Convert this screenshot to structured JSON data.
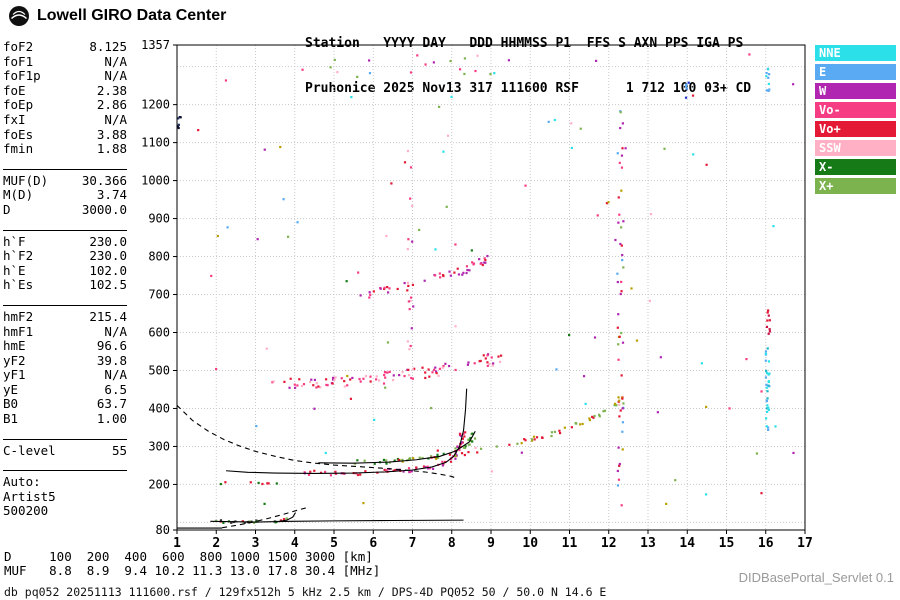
{
  "header": {
    "brand": "Lowell GIRO Data Center",
    "station_header_line": "Station   YYYY DAY   DDD HHMMSS P1  FFS S AXN PPS IGA PS",
    "station_value_line": "Pruhonice 2025 Nov13 317 111600 RSF      1 712 100 03+ CD"
  },
  "parameters": {
    "groups": [
      {
        "rows": [
          [
            "foF2",
            "8.125"
          ],
          [
            "foF1",
            "N/A"
          ],
          [
            "foF1p",
            "N/A"
          ],
          [
            "foE",
            "2.38"
          ],
          [
            "foEp",
            "2.86"
          ],
          [
            "fxI",
            "N/A"
          ],
          [
            "foEs",
            "3.88"
          ],
          [
            "fmin",
            "1.88"
          ]
        ]
      },
      {
        "rows": [
          [
            "MUF(D)",
            "30.366"
          ],
          [
            "M(D)",
            "3.74"
          ],
          [
            "D",
            "3000.0"
          ]
        ]
      },
      {
        "rows": [
          [
            "h`F",
            "230.0"
          ],
          [
            "h`F2",
            "230.0"
          ],
          [
            "h`E",
            "102.0"
          ],
          [
            "h`Es",
            "102.5"
          ]
        ]
      },
      {
        "rows": [
          [
            "hmF2",
            "215.4"
          ],
          [
            "hmF1",
            "N/A"
          ],
          [
            "hmE",
            "96.6"
          ],
          [
            "yF2",
            "39.8"
          ],
          [
            "yF1",
            "N/A"
          ],
          [
            "yE",
            "6.5"
          ],
          [
            "B0",
            "63.7"
          ],
          [
            "B1",
            "1.00"
          ]
        ]
      },
      {
        "rows": [
          [
            "C-level",
            "55"
          ]
        ]
      },
      {
        "rows": [
          [
            "Auto:",
            ""
          ],
          [
            "Artist5",
            ""
          ],
          [
            "500200",
            ""
          ]
        ]
      }
    ]
  },
  "legend": {
    "items": [
      {
        "label": "NNE",
        "color": "#2be0e8"
      },
      {
        "label": "E",
        "color": "#59aaf2"
      },
      {
        "label": "W",
        "color": "#b026b0"
      },
      {
        "label": "Vo-",
        "color": "#f63d84"
      },
      {
        "label": "Vo+",
        "color": "#e31936"
      },
      {
        "label": "SSW",
        "color": "#ffb0c4"
      },
      {
        "label": "X-",
        "color": "#167a16"
      },
      {
        "label": "X+",
        "color": "#7cb34f"
      }
    ]
  },
  "footer": {
    "d_row": "D     100  200  400  600  800 1000 1500 3000 [km]",
    "muf_row": "MUF   8.8  8.9  9.4 10.2 11.3 13.0 17.8 30.4 [MHz]",
    "status_line": "db pq052 20251113 111600.rsf / 129fx512h 5 kHz 2.5 km / DPS-4D PQ052 50 / 50.0 N 14.6 E",
    "servlet_label": "DIDBasePortal_Servlet 0.1"
  },
  "chart_data": {
    "type": "scatter",
    "title": "Pruhonice Digisonde ionogram 2025 Nov13 (day 317) 11:16:00",
    "xlabel": "[MHz]",
    "ylabel": "[km]",
    "xlim": [
      1,
      17
    ],
    "ylim": [
      80,
      1357
    ],
    "grid": true,
    "legend_position": "right",
    "x_ticks": [
      1,
      2,
      3,
      4,
      5,
      6,
      7,
      8,
      9,
      10,
      11,
      12,
      13,
      14,
      15,
      16,
      17
    ],
    "y_tick_labels": [
      1357,
      1200,
      1100,
      1000,
      900,
      800,
      700,
      600,
      500,
      400,
      300,
      200,
      80
    ],
    "y_gridlines": [
      100,
      200,
      300,
      400,
      500,
      600,
      700,
      800,
      900,
      1000,
      1100,
      1200,
      1300
    ],
    "traces": [
      {
        "name": "baseline",
        "style": "solid",
        "points": [
          [
            1.0,
            85
          ],
          [
            2.15,
            85
          ]
        ]
      },
      {
        "name": "Es-trace",
        "style": "solid",
        "points": [
          [
            1.85,
            103
          ],
          [
            3.0,
            101
          ],
          [
            3.9,
            103
          ],
          [
            5.0,
            104
          ],
          [
            6.5,
            105
          ],
          [
            8.3,
            106
          ]
        ]
      },
      {
        "name": "E-cusp",
        "style": "solid",
        "points": [
          [
            3.55,
            102
          ],
          [
            3.8,
            106
          ],
          [
            3.95,
            114
          ],
          [
            4.02,
            126
          ]
        ]
      },
      {
        "name": "F-O-trace",
        "style": "solid",
        "points": [
          [
            2.25,
            236
          ],
          [
            2.8,
            232
          ],
          [
            3.5,
            230
          ],
          [
            4.5,
            229
          ],
          [
            5.5,
            230
          ],
          [
            6.3,
            233
          ],
          [
            7.0,
            238
          ],
          [
            7.5,
            246
          ],
          [
            7.85,
            258
          ],
          [
            8.05,
            274
          ],
          [
            8.2,
            300
          ],
          [
            8.3,
            342
          ],
          [
            8.35,
            396
          ],
          [
            8.38,
            452
          ]
        ]
      },
      {
        "name": "F-X-trace",
        "style": "solid",
        "points": [
          [
            4.6,
            257
          ],
          [
            5.5,
            256
          ],
          [
            6.4,
            259
          ],
          [
            7.1,
            265
          ],
          [
            7.7,
            274
          ],
          [
            8.1,
            288
          ],
          [
            8.45,
            312
          ],
          [
            8.6,
            340
          ]
        ]
      },
      {
        "name": "profile-F",
        "style": "dashed",
        "points": [
          [
            1.0,
            408
          ],
          [
            1.4,
            368
          ],
          [
            1.8,
            340
          ],
          [
            2.2,
            318
          ],
          [
            2.6,
            301
          ],
          [
            3.0,
            287
          ],
          [
            3.5,
            274
          ],
          [
            4.0,
            263
          ],
          [
            4.5,
            256
          ],
          [
            5.0,
            251
          ],
          [
            5.6,
            247
          ],
          [
            6.2,
            243
          ],
          [
            6.8,
            238
          ],
          [
            7.3,
            233
          ],
          [
            7.7,
            227
          ],
          [
            8.0,
            221
          ],
          [
            8.12,
            216
          ]
        ]
      },
      {
        "name": "profile-E",
        "style": "dashed",
        "points": [
          [
            2.15,
            86
          ],
          [
            2.5,
            92
          ],
          [
            2.9,
            100
          ],
          [
            3.3,
            110
          ],
          [
            3.7,
            121
          ],
          [
            4.1,
            133
          ],
          [
            4.35,
            140
          ]
        ]
      }
    ],
    "scatter_clusters": [
      {
        "name": "E-region-echoes",
        "mode": "path",
        "path": [
          [
            1.9,
            103
          ],
          [
            2.6,
            101
          ],
          [
            3.3,
            102
          ],
          [
            3.9,
            107
          ]
        ],
        "n": 26,
        "jitter_f": 0.1,
        "jitter_h": 4,
        "colors": [
          "#167a16",
          "#e31936",
          "#333333",
          "#7cb34f"
        ]
      },
      {
        "name": "E-second-hop",
        "mode": "path",
        "path": [
          [
            2.0,
            203
          ],
          [
            3.0,
            202
          ],
          [
            3.6,
            206
          ]
        ],
        "n": 8,
        "jitter_f": 0.12,
        "jitter_h": 4,
        "colors": [
          "#167a16",
          "#e31936"
        ]
      },
      {
        "name": "F-O-echoes",
        "mode": "path",
        "path": [
          [
            4.3,
            231
          ],
          [
            5.5,
            231
          ],
          [
            6.5,
            234
          ],
          [
            7.3,
            241
          ],
          [
            7.9,
            256
          ],
          [
            8.15,
            288
          ],
          [
            8.3,
            335
          ]
        ],
        "n": 70,
        "jitter_f": 0.08,
        "jitter_h": 7,
        "colors": [
          "#e31936",
          "#f63d84",
          "#b026b0"
        ]
      },
      {
        "name": "F-X-echoes",
        "mode": "path",
        "path": [
          [
            4.8,
            257
          ],
          [
            6.0,
            258
          ],
          [
            7.0,
            264
          ],
          [
            7.8,
            276
          ],
          [
            8.4,
            300
          ],
          [
            8.6,
            332
          ]
        ],
        "n": 34,
        "jitter_f": 0.08,
        "jitter_h": 6,
        "colors": [
          "#167a16",
          "#7cb34f"
        ]
      },
      {
        "name": "F-second-hop",
        "mode": "path",
        "path": [
          [
            3.4,
            462
          ],
          [
            4.5,
            465
          ],
          [
            5.5,
            472
          ],
          [
            6.5,
            483
          ],
          [
            7.5,
            497
          ],
          [
            8.5,
            516
          ],
          [
            9.3,
            536
          ]
        ],
        "n": 95,
        "jitter_f": 0.1,
        "jitter_h": 15,
        "colors": [
          "#f63d84",
          "#b026b0",
          "#e31936",
          "#ffb0c4"
        ]
      },
      {
        "name": "F-third-hop",
        "mode": "path",
        "path": [
          [
            5.6,
            700
          ],
          [
            6.5,
            716
          ],
          [
            7.5,
            738
          ],
          [
            8.3,
            763
          ],
          [
            8.9,
            792
          ]
        ],
        "n": 46,
        "jitter_f": 0.09,
        "jitter_h": 13,
        "colors": [
          "#f63d84",
          "#b026b0",
          "#e31936"
        ]
      },
      {
        "name": "oblique-arc",
        "mode": "path",
        "path": [
          [
            6.3,
            258
          ],
          [
            7.5,
            270
          ],
          [
            8.5,
            285
          ],
          [
            9.5,
            306
          ],
          [
            10.5,
            331
          ],
          [
            11.3,
            361
          ],
          [
            11.9,
            393
          ],
          [
            12.35,
            428
          ]
        ],
        "n": 60,
        "jitter_f": 0.06,
        "jitter_h": 5,
        "colors": [
          "#b8a000",
          "#7cb34f",
          "#e31936"
        ]
      },
      {
        "name": "rfi-12MHz",
        "mode": "column",
        "f": 12.3,
        "h": [
          170,
          1255
        ],
        "n": 48,
        "jitter_f": 0.08,
        "colors": [
          "#f63d84",
          "#b026b0",
          "#7cb34f",
          "#59aaf2",
          "#e31936",
          "#b8a000"
        ]
      },
      {
        "name": "rfi-16MHz-low",
        "mode": "column",
        "f": 16.05,
        "h": [
          335,
          565
        ],
        "n": 30,
        "jitter_f": 0.05,
        "colors": [
          "#2be0e8",
          "#59aaf2",
          "#19b7c9"
        ]
      },
      {
        "name": "rfi-16MHz-mid",
        "mode": "column",
        "f": 16.07,
        "h": [
          590,
          665
        ],
        "n": 9,
        "jitter_f": 0.04,
        "colors": [
          "#cc1144",
          "#e31936"
        ]
      },
      {
        "name": "rfi-16MHz-top",
        "mode": "column",
        "f": 16.05,
        "h": [
          1230,
          1300
        ],
        "n": 10,
        "jitter_f": 0.05,
        "colors": [
          "#2be0e8",
          "#59aaf2"
        ]
      },
      {
        "name": "rfi-14MHz-top",
        "mode": "column",
        "f": 14.0,
        "h": [
          1215,
          1258
        ],
        "n": 7,
        "jitter_f": 0.04,
        "colors": [
          "#2233cc",
          "#59aaf2"
        ]
      },
      {
        "name": "rfi-7MHz",
        "mode": "column",
        "f": 6.95,
        "h": [
          420,
          1130
        ],
        "n": 20,
        "jitter_f": 0.07,
        "colors": [
          "#f63d84",
          "#b026b0",
          "#ffb0c4"
        ]
      },
      {
        "name": "left-edge-blob",
        "mode": "column",
        "f": 1.06,
        "h": [
          1130,
          1175
        ],
        "n": 7,
        "jitter_f": 0.05,
        "colors": [
          "#111133",
          "#223366"
        ]
      },
      {
        "name": "top-band",
        "mode": "uniform",
        "f": [
          4.0,
          9.5
        ],
        "h": [
          1265,
          1330
        ],
        "n": 16,
        "colors": [
          "#f63d84",
          "#b026b0",
          "#7cb34f",
          "#e31936"
        ]
      },
      {
        "name": "random-specks",
        "mode": "uniform",
        "f": [
          1.2,
          16.8
        ],
        "h": [
          95,
          1340
        ],
        "n": 95,
        "colors": [
          "#2be0e8",
          "#59aaf2",
          "#b026b0",
          "#f63d84",
          "#e31936",
          "#ffb0c4",
          "#167a16",
          "#7cb34f",
          "#b8a000"
        ]
      }
    ]
  }
}
